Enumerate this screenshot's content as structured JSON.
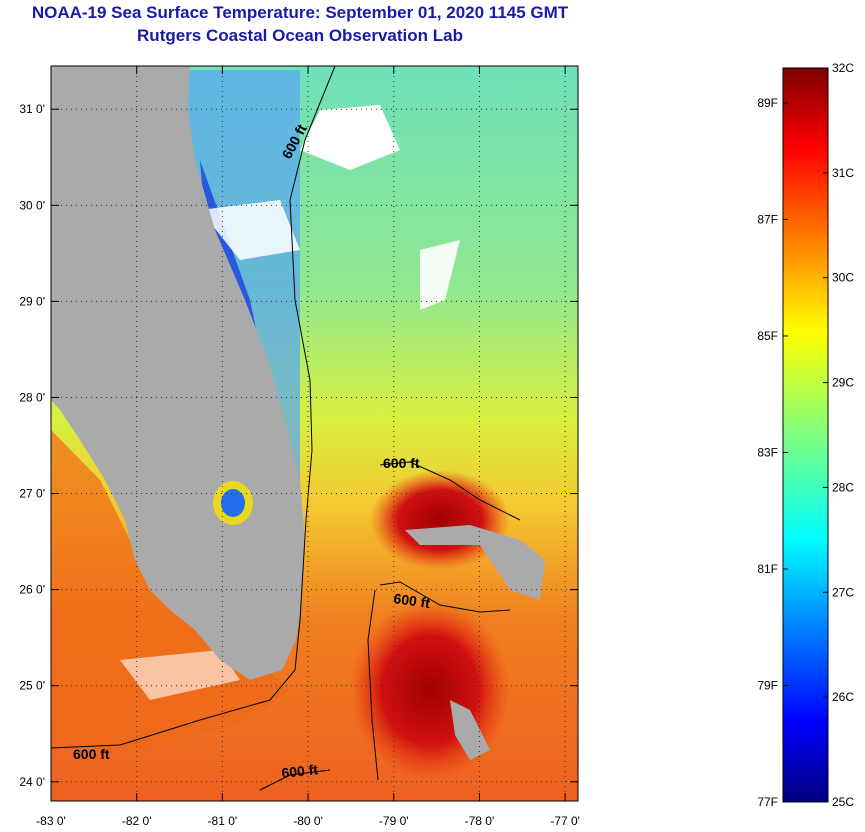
{
  "title": {
    "line1": "NOAA-19 Sea Surface Temperature:  September 01, 2020 1145 GMT",
    "line2": "Rutgers Coastal Ocean Observation Lab"
  },
  "map": {
    "lon_range": [
      -83,
      -76.85
    ],
    "lat_range": [
      23.8,
      31.45
    ],
    "x_ticks": [
      {
        "lon": -83,
        "label": "-83 0'"
      },
      {
        "lon": -82,
        "label": "-82 0'"
      },
      {
        "lon": -81,
        "label": "-81 0'"
      },
      {
        "lon": -80,
        "label": "-80 0'"
      },
      {
        "lon": -79,
        "label": "-79 0'"
      },
      {
        "lon": -78,
        "label": "-78 0'"
      },
      {
        "lon": -77,
        "label": "-77 0'"
      }
    ],
    "y_ticks": [
      {
        "lat": 31,
        "label": "31 0'"
      },
      {
        "lat": 30,
        "label": "30 0'"
      },
      {
        "lat": 29,
        "label": "29 0'"
      },
      {
        "lat": 28,
        "label": "28 0'"
      },
      {
        "lat": 27,
        "label": "27 0'"
      },
      {
        "lat": 26,
        "label": "26 0'"
      },
      {
        "lat": 25,
        "label": "25 0'"
      },
      {
        "lat": 24,
        "label": "24 0'"
      }
    ],
    "contour_label": "600 ft",
    "land_color": "#aaaaaa"
  },
  "colorbar": {
    "min_c": 25,
    "max_c": 32,
    "celsius_labels": [
      "32C",
      "31C",
      "30C",
      "29C",
      "28C",
      "27C",
      "26C",
      "25C"
    ],
    "fahrenheit_labels": [
      "89F",
      "87F",
      "85F",
      "83F",
      "81F",
      "79F",
      "77F"
    ]
  }
}
